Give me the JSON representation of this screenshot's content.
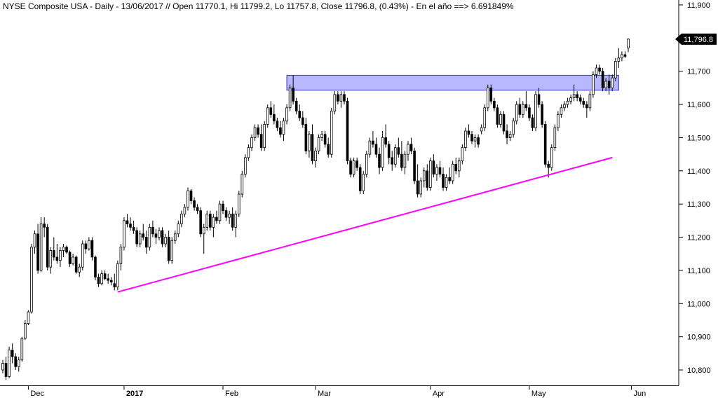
{
  "chart_data": {
    "type": "candlestick",
    "title": "NYSE Composite USA - Daily - 13/06/2017 // Open 11770.1, Hi 11799.2, Lo 11757.8, Close 11796.8, (0.43%) - En el año ==> 6.691849%",
    "ylim": [
      10750,
      11920
    ],
    "y_ticks": [
      10800,
      10900,
      11000,
      11100,
      11200,
      11300,
      11400,
      11500,
      11600,
      11700,
      11800,
      11900
    ],
    "y_tick_labels": [
      "10,800",
      "10,900",
      "11,000",
      "11,100",
      "11,200",
      "11,300",
      "11,400",
      "11,500",
      "11,600",
      "11,700",
      "11,800",
      "11,900"
    ],
    "x_ticks": [
      {
        "label": "Dec",
        "index": 8,
        "bold": false
      },
      {
        "label": "2017",
        "index": 38,
        "bold": true
      },
      {
        "label": "Feb",
        "index": 69,
        "bold": false
      },
      {
        "label": "Mar",
        "index": 98,
        "bold": false
      },
      {
        "label": "Apr",
        "index": 134,
        "bold": false
      },
      {
        "label": "May",
        "index": 165,
        "bold": false
      },
      {
        "label": "Jun",
        "index": 197,
        "bold": false
      }
    ],
    "last_price_label": "11,796.8",
    "last_price_value": 11796.8,
    "resistance_zone": {
      "x_start_index": 89,
      "x_end_index": 193,
      "y_low": 11643,
      "y_high": 11688,
      "color": "#b8b8ff",
      "stroke": "#3333cc"
    },
    "support_line": {
      "x_start_index": 36,
      "y_start": 11035,
      "x_end_index": 191,
      "y_end": 11440,
      "color": "#ff00ff"
    },
    "up_color": "#ffffff",
    "down_color": "#000000",
    "candles": [
      [
        10800,
        10830,
        10790,
        10820
      ],
      [
        10820,
        10840,
        10770,
        10780
      ],
      [
        10780,
        10870,
        10775,
        10860
      ],
      [
        10860,
        10880,
        10820,
        10840
      ],
      [
        10840,
        10850,
        10800,
        10810
      ],
      [
        10810,
        10840,
        10795,
        10830
      ],
      [
        10830,
        10900,
        10825,
        10895
      ],
      [
        10895,
        10950,
        10890,
        10940
      ],
      [
        10940,
        10980,
        10935,
        10975
      ],
      [
        10975,
        11180,
        10970,
        11170
      ],
      [
        11170,
        11220,
        11150,
        11210
      ],
      [
        11210,
        11240,
        11090,
        11100
      ],
      [
        11100,
        11260,
        11095,
        11240
      ],
      [
        11240,
        11260,
        11200,
        11230
      ],
      [
        11230,
        11240,
        11100,
        11110
      ],
      [
        11110,
        11170,
        11090,
        11160
      ],
      [
        11160,
        11200,
        11130,
        11140
      ],
      [
        11140,
        11180,
        11120,
        11130
      ],
      [
        11130,
        11170,
        11110,
        11160
      ],
      [
        11160,
        11180,
        11140,
        11170
      ],
      [
        11170,
        11175,
        11150,
        11155
      ],
      [
        11155,
        11160,
        11110,
        11120
      ],
      [
        11120,
        11150,
        11115,
        11140
      ],
      [
        11140,
        11145,
        11090,
        11095
      ],
      [
        11095,
        11120,
        11080,
        11110
      ],
      [
        11110,
        11190,
        11100,
        11180
      ],
      [
        11180,
        11190,
        11150,
        11165
      ],
      [
        11165,
        11200,
        11160,
        11190
      ],
      [
        11190,
        11200,
        11130,
        11140
      ],
      [
        11140,
        11145,
        11070,
        11080
      ],
      [
        11080,
        11090,
        11050,
        11060
      ],
      [
        11060,
        11100,
        11055,
        11090
      ],
      [
        11090,
        11100,
        11070,
        11075
      ],
      [
        11075,
        11090,
        11060,
        11070
      ],
      [
        11070,
        11080,
        11055,
        11065
      ],
      [
        11060,
        11090,
        11040,
        11050
      ],
      [
        11050,
        11130,
        11040,
        11120
      ],
      [
        11120,
        11180,
        11100,
        11170
      ],
      [
        11170,
        11260,
        11160,
        11250
      ],
      [
        11250,
        11270,
        11230,
        11240
      ],
      [
        11240,
        11260,
        11220,
        11230
      ],
      [
        11230,
        11250,
        11210,
        11220
      ],
      [
        11220,
        11230,
        11170,
        11180
      ],
      [
        11180,
        11220,
        11170,
        11210
      ],
      [
        11210,
        11240,
        11190,
        11200
      ],
      [
        11200,
        11220,
        11150,
        11170
      ],
      [
        11170,
        11240,
        11160,
        11230
      ],
      [
        11230,
        11250,
        11200,
        11210
      ],
      [
        11210,
        11225,
        11180,
        11200
      ],
      [
        11200,
        11230,
        11190,
        11220
      ],
      [
        11220,
        11230,
        11170,
        11180
      ],
      [
        11180,
        11210,
        11170,
        11200
      ],
      [
        11200,
        11220,
        11120,
        11130
      ],
      [
        11130,
        11200,
        11120,
        11190
      ],
      [
        11190,
        11220,
        11180,
        11210
      ],
      [
        11210,
        11250,
        11200,
        11240
      ],
      [
        11240,
        11280,
        11230,
        11270
      ],
      [
        11270,
        11300,
        11260,
        11290
      ],
      [
        11290,
        11350,
        11280,
        11340
      ],
      [
        11340,
        11345,
        11300,
        11310
      ],
      [
        11310,
        11320,
        11280,
        11290
      ],
      [
        11290,
        11300,
        11270,
        11280
      ],
      [
        11280,
        11290,
        11200,
        11210
      ],
      [
        11210,
        11240,
        11150,
        11230
      ],
      [
        11230,
        11280,
        11220,
        11270
      ],
      [
        11270,
        11280,
        11220,
        11230
      ],
      [
        11230,
        11270,
        11200,
        11260
      ],
      [
        11260,
        11280,
        11240,
        11250
      ],
      [
        11250,
        11310,
        11240,
        11300
      ],
      [
        11300,
        11310,
        11270,
        11280
      ],
      [
        11280,
        11290,
        11250,
        11260
      ],
      [
        11260,
        11280,
        11240,
        11270
      ],
      [
        11270,
        11290,
        11220,
        11230
      ],
      [
        11230,
        11280,
        11200,
        11270
      ],
      [
        11270,
        11340,
        11260,
        11330
      ],
      [
        11330,
        11400,
        11320,
        11390
      ],
      [
        11390,
        11450,
        11380,
        11440
      ],
      [
        11440,
        11480,
        11430,
        11470
      ],
      [
        11470,
        11510,
        11460,
        11500
      ],
      [
        11500,
        11540,
        11490,
        11530
      ],
      [
        11530,
        11540,
        11500,
        11510
      ],
      [
        11510,
        11540,
        11460,
        11470
      ],
      [
        11470,
        11550,
        11460,
        11540
      ],
      [
        11540,
        11600,
        11530,
        11590
      ],
      [
        11590,
        11610,
        11560,
        11570
      ],
      [
        11570,
        11600,
        11540,
        11550
      ],
      [
        11550,
        11560,
        11520,
        11530
      ],
      [
        11530,
        11550,
        11500,
        11510
      ],
      [
        11510,
        11560,
        11490,
        11550
      ],
      [
        11550,
        11600,
        11540,
        11590
      ],
      [
        11590,
        11660,
        11580,
        11650
      ],
      [
        11650,
        11688,
        11600,
        11610
      ],
      [
        11610,
        11620,
        11570,
        11580
      ],
      [
        11580,
        11600,
        11550,
        11560
      ],
      [
        11560,
        11580,
        11530,
        11540
      ],
      [
        11540,
        11560,
        11450,
        11460
      ],
      [
        11460,
        11520,
        11440,
        11510
      ],
      [
        11510,
        11540,
        11420,
        11430
      ],
      [
        11430,
        11470,
        11410,
        11460
      ],
      [
        11460,
        11510,
        11450,
        11500
      ],
      [
        11500,
        11520,
        11490,
        11510
      ],
      [
        11510,
        11520,
        11470,
        11480
      ],
      [
        11480,
        11500,
        11440,
        11450
      ],
      [
        11450,
        11590,
        11440,
        11580
      ],
      [
        11580,
        11640,
        11570,
        11630
      ],
      [
        11630,
        11640,
        11600,
        11610
      ],
      [
        11610,
        11640,
        11590,
        11630
      ],
      [
        11630,
        11640,
        11600,
        11610
      ],
      [
        11610,
        11620,
        11420,
        11430
      ],
      [
        11430,
        11440,
        11380,
        11390
      ],
      [
        11390,
        11440,
        11380,
        11430
      ],
      [
        11430,
        11440,
        11400,
        11410
      ],
      [
        11410,
        11420,
        11330,
        11340
      ],
      [
        11340,
        11400,
        11330,
        11390
      ],
      [
        11390,
        11460,
        11380,
        11450
      ],
      [
        11450,
        11500,
        11440,
        11490
      ],
      [
        11490,
        11520,
        11470,
        11480
      ],
      [
        11480,
        11500,
        11440,
        11450
      ],
      [
        11450,
        11470,
        11390,
        11410
      ],
      [
        11410,
        11520,
        11400,
        11500
      ],
      [
        11500,
        11540,
        11470,
        11480
      ],
      [
        11480,
        11490,
        11420,
        11440
      ],
      [
        11440,
        11460,
        11400,
        11420
      ],
      [
        11420,
        11480,
        11410,
        11470
      ],
      [
        11470,
        11500,
        11440,
        11450
      ],
      [
        11450,
        11490,
        11400,
        11410
      ],
      [
        11410,
        11460,
        11390,
        11450
      ],
      [
        11450,
        11490,
        11430,
        11480
      ],
      [
        11480,
        11500,
        11450,
        11460
      ],
      [
        11460,
        11470,
        11360,
        11370
      ],
      [
        11370,
        11420,
        11320,
        11330
      ],
      [
        11330,
        11380,
        11320,
        11370
      ],
      [
        11370,
        11410,
        11350,
        11400
      ],
      [
        11400,
        11420,
        11340,
        11350
      ],
      [
        11350,
        11440,
        11340,
        11430
      ],
      [
        11430,
        11450,
        11380,
        11390
      ],
      [
        11390,
        11420,
        11370,
        11410
      ],
      [
        11410,
        11430,
        11380,
        11390
      ],
      [
        11390,
        11410,
        11340,
        11350
      ],
      [
        11350,
        11390,
        11340,
        11380
      ],
      [
        11380,
        11410,
        11360,
        11370
      ],
      [
        11370,
        11430,
        11360,
        11420
      ],
      [
        11420,
        11440,
        11390,
        11400
      ],
      [
        11400,
        11440,
        11380,
        11430
      ],
      [
        11430,
        11480,
        11420,
        11470
      ],
      [
        11470,
        11530,
        11460,
        11520
      ],
      [
        11520,
        11540,
        11500,
        11510
      ],
      [
        11510,
        11520,
        11480,
        11490
      ],
      [
        11490,
        11510,
        11470,
        11500
      ],
      [
        11500,
        11510,
        11470,
        11480
      ],
      [
        11520,
        11540,
        11510,
        11530
      ],
      [
        11530,
        11600,
        11520,
        11590
      ],
      [
        11590,
        11660,
        11580,
        11650
      ],
      [
        11650,
        11660,
        11600,
        11610
      ],
      [
        11610,
        11620,
        11580,
        11590
      ],
      [
        11590,
        11600,
        11530,
        11540
      ],
      [
        11540,
        11580,
        11530,
        11570
      ],
      [
        11570,
        11580,
        11510,
        11520
      ],
      [
        11520,
        11540,
        11480,
        11500
      ],
      [
        11500,
        11520,
        11490,
        11510
      ],
      [
        11510,
        11560,
        11500,
        11550
      ],
      [
        11550,
        11610,
        11540,
        11600
      ],
      [
        11600,
        11620,
        11560,
        11570
      ],
      [
        11570,
        11610,
        11560,
        11600
      ],
      [
        11600,
        11640,
        11580,
        11590
      ],
      [
        11590,
        11600,
        11550,
        11560
      ],
      [
        11560,
        11570,
        11520,
        11530
      ],
      [
        11530,
        11640,
        11520,
        11630
      ],
      [
        11630,
        11650,
        11590,
        11600
      ],
      [
        11600,
        11610,
        11530,
        11540
      ],
      [
        11540,
        11550,
        11410,
        11420
      ],
      [
        11420,
        11430,
        11380,
        11410
      ],
      [
        11410,
        11480,
        11400,
        11470
      ],
      [
        11470,
        11540,
        11460,
        11530
      ],
      [
        11530,
        11580,
        11520,
        11570
      ],
      [
        11570,
        11600,
        11560,
        11590
      ],
      [
        11590,
        11610,
        11580,
        11600
      ],
      [
        11600,
        11620,
        11590,
        11610
      ],
      [
        11610,
        11630,
        11600,
        11620
      ],
      [
        11620,
        11660,
        11610,
        11630
      ],
      [
        11630,
        11640,
        11610,
        11620
      ],
      [
        11620,
        11630,
        11600,
        11610
      ],
      [
        11610,
        11620,
        11590,
        11600
      ],
      [
        11600,
        11610,
        11560,
        11590
      ],
      [
        11590,
        11640,
        11580,
        11630
      ],
      [
        11630,
        11700,
        11620,
        11690
      ],
      [
        11690,
        11720,
        11680,
        11710
      ],
      [
        11710,
        11720,
        11690,
        11700
      ],
      [
        11700,
        11710,
        11640,
        11650
      ],
      [
        11650,
        11680,
        11640,
        11670
      ],
      [
        11670,
        11690,
        11630,
        11650
      ],
      [
        11650,
        11690,
        11640,
        11680
      ],
      [
        11680,
        11740,
        11670,
        11730
      ],
      [
        11730,
        11770,
        11710,
        11740
      ],
      [
        11740,
        11760,
        11730,
        11750
      ],
      [
        11750,
        11760,
        11740,
        11745
      ],
      [
        11770.1,
        11799.2,
        11757.8,
        11796.8
      ]
    ]
  }
}
